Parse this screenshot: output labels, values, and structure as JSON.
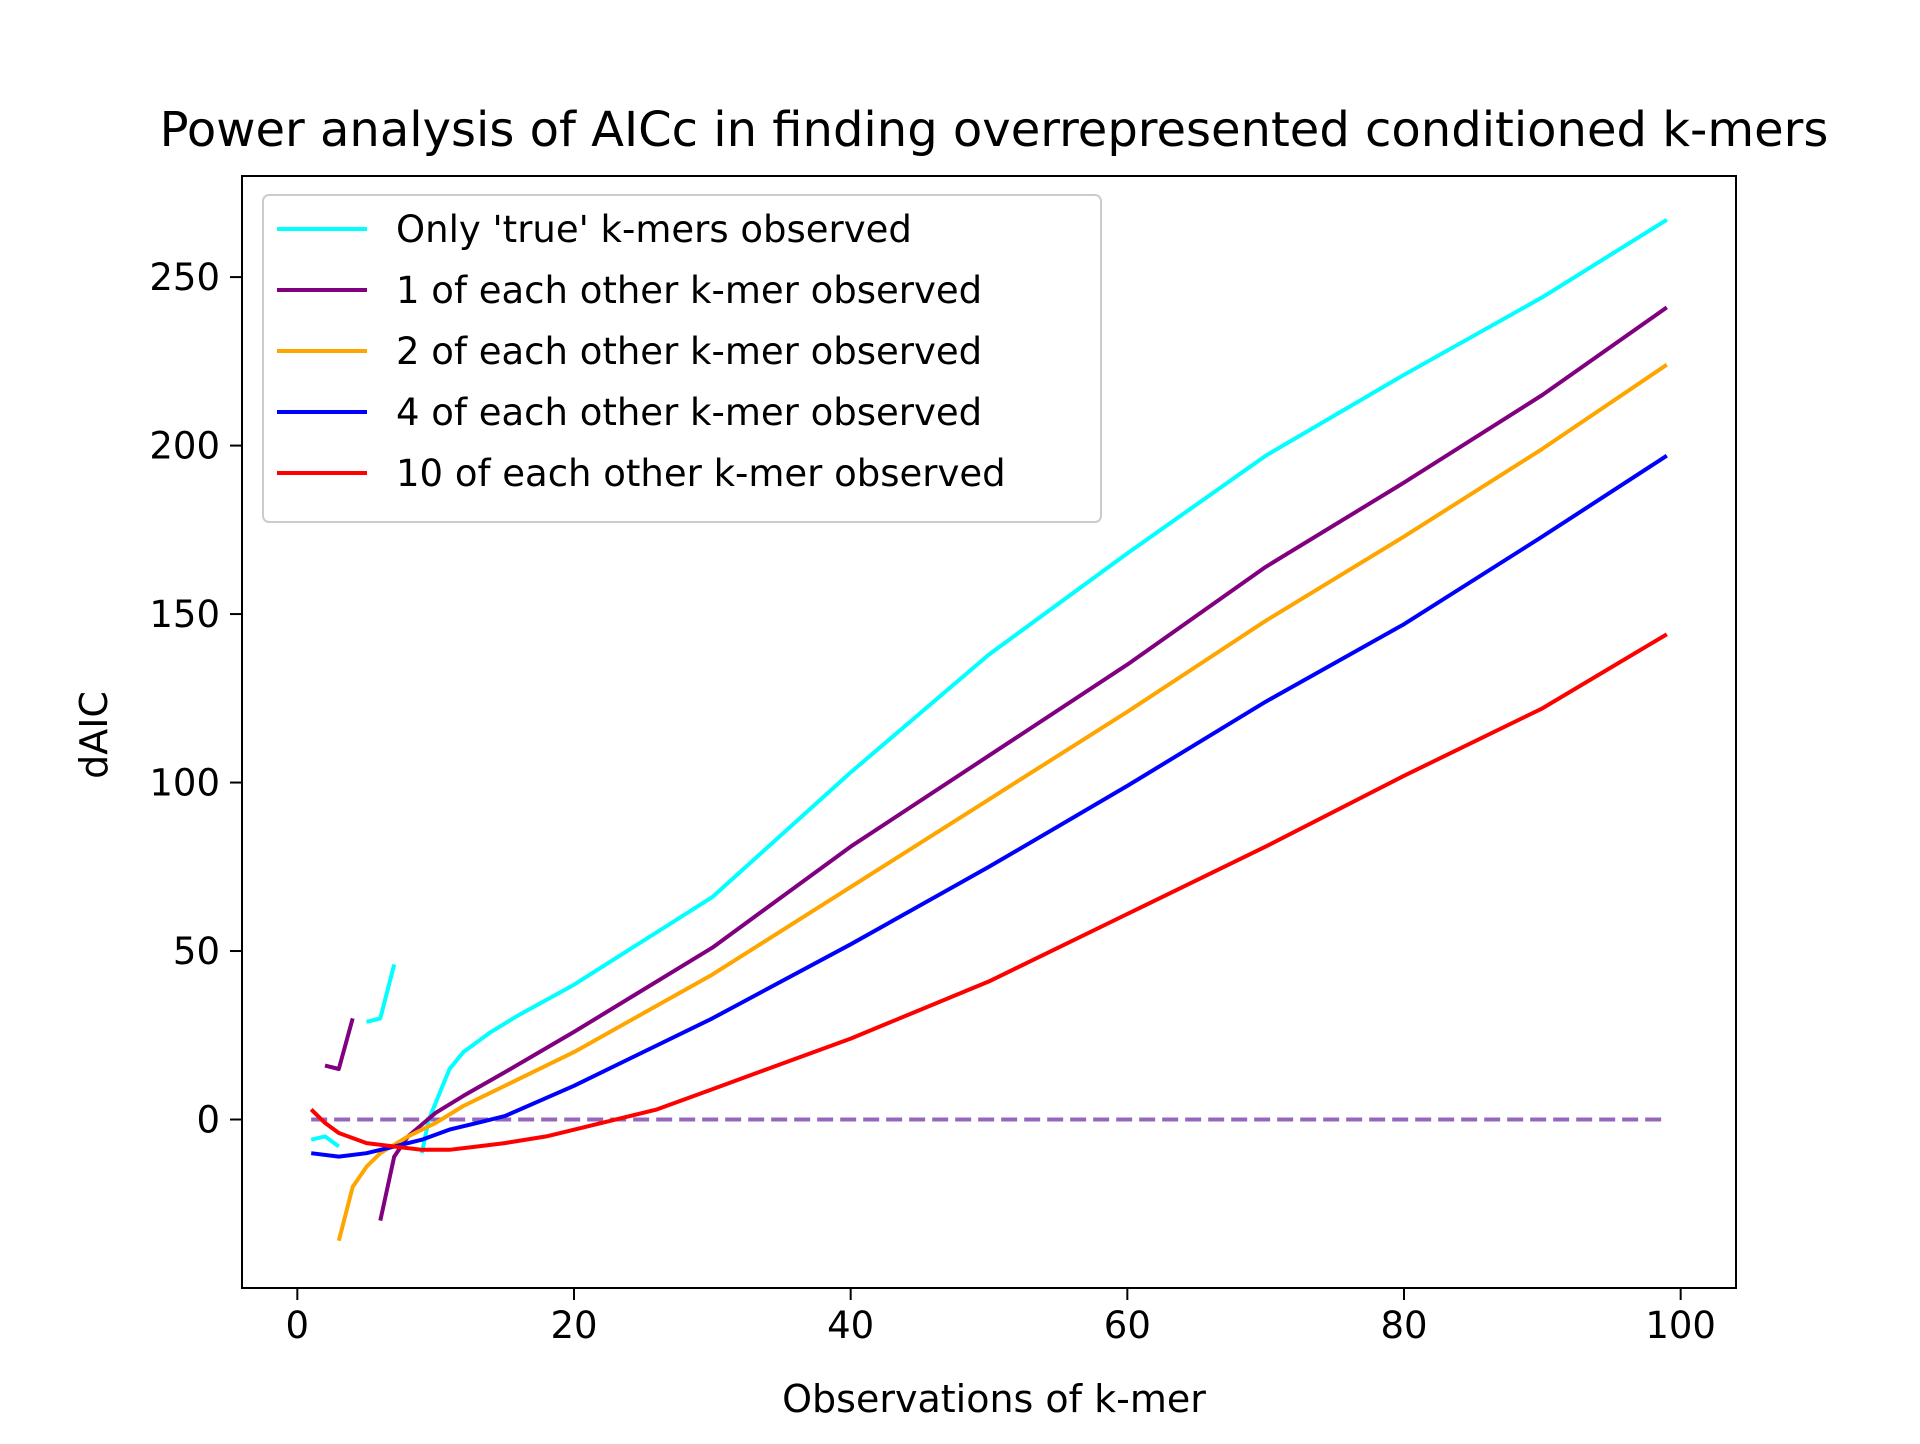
{
  "chart_data": {
    "type": "line",
    "title": "Power analysis of AICc in finding overrepresented conditioned k-mers",
    "xlabel": "Observations of k-mer",
    "ylabel": "dAIC",
    "xlim": [
      -4,
      104
    ],
    "ylim": [
      -50,
      280
    ],
    "xticks": [
      0,
      20,
      40,
      60,
      80,
      100
    ],
    "xtick_labels": [
      "0",
      "20",
      "40",
      "60",
      "80",
      "100"
    ],
    "yticks": [
      0,
      50,
      100,
      150,
      200,
      250
    ],
    "ytick_labels": [
      "0",
      "50",
      "100",
      "150",
      "200",
      "250"
    ],
    "grid": false,
    "legend_placement": "upper-left",
    "series": [
      {
        "name": "Only 'true' k-mers observed",
        "color": "#00ffff",
        "segments": [
          [
            [
              1,
              -6
            ],
            [
              2,
              -5
            ],
            [
              3,
              -8
            ]
          ],
          [
            [
              5,
              29
            ],
            [
              6,
              30
            ],
            [
              7,
              46
            ]
          ],
          [
            [
              9,
              -10
            ],
            [
              9.5,
              0
            ],
            [
              10,
              5
            ],
            [
              11,
              15
            ],
            [
              12,
              20
            ],
            [
              14,
              26
            ],
            [
              16,
              31
            ],
            [
              20,
              40
            ],
            [
              30,
              66
            ],
            [
              40,
              103
            ],
            [
              50,
              138
            ],
            [
              60,
              168
            ],
            [
              70,
              197
            ],
            [
              80,
              221
            ],
            [
              90,
              244
            ],
            [
              99,
              267
            ]
          ]
        ]
      },
      {
        "name": "1 of each other k-mer observed",
        "color": "#800080",
        "segments": [
          [
            [
              2,
              16
            ],
            [
              3,
              15
            ],
            [
              4,
              30
            ]
          ],
          [
            [
              6,
              -30
            ],
            [
              7,
              -11
            ],
            [
              8,
              -5
            ],
            [
              10,
              2
            ],
            [
              12,
              7
            ],
            [
              15,
              14
            ],
            [
              20,
              26
            ],
            [
              30,
              51
            ],
            [
              40,
              81
            ],
            [
              50,
              108
            ],
            [
              60,
              135
            ],
            [
              70,
              164
            ],
            [
              80,
              189
            ],
            [
              90,
              215
            ],
            [
              99,
              241
            ]
          ]
        ]
      },
      {
        "name": "2 of each other k-mer observed",
        "color": "#ffa500",
        "segments": [
          [
            [
              3,
              -36
            ],
            [
              4,
              -20
            ],
            [
              5,
              -14
            ],
            [
              6,
              -10
            ],
            [
              8,
              -5
            ],
            [
              10,
              -1
            ],
            [
              12,
              4
            ],
            [
              15,
              10
            ],
            [
              20,
              20
            ],
            [
              30,
              43
            ],
            [
              40,
              69
            ],
            [
              50,
              95
            ],
            [
              60,
              121
            ],
            [
              70,
              148
            ],
            [
              80,
              173
            ],
            [
              90,
              199
            ],
            [
              99,
              224
            ]
          ]
        ]
      },
      {
        "name": "4 of each other k-mer observed",
        "color": "#0000ff",
        "segments": [
          [
            [
              1,
              -10
            ],
            [
              3,
              -11
            ],
            [
              5,
              -10
            ],
            [
              7,
              -8
            ],
            [
              9,
              -6
            ],
            [
              11,
              -3
            ],
            [
              13,
              -1
            ],
            [
              15,
              1
            ],
            [
              20,
              10
            ],
            [
              30,
              30
            ],
            [
              40,
              52
            ],
            [
              50,
              75
            ],
            [
              60,
              99
            ],
            [
              70,
              124
            ],
            [
              80,
              147
            ],
            [
              90,
              173
            ],
            [
              99,
              197
            ]
          ]
        ]
      },
      {
        "name": "10 of each other k-mer observed",
        "color": "#ff0000",
        "segments": [
          [
            [
              1,
              3
            ],
            [
              2,
              -1
            ],
            [
              3,
              -4
            ],
            [
              5,
              -7
            ],
            [
              7,
              -8
            ],
            [
              9,
              -9
            ],
            [
              11,
              -9
            ],
            [
              13,
              -8
            ],
            [
              15,
              -7
            ],
            [
              18,
              -5
            ],
            [
              22,
              -1
            ],
            [
              26,
              3
            ],
            [
              30,
              9
            ],
            [
              40,
              24
            ],
            [
              50,
              41
            ],
            [
              60,
              61
            ],
            [
              70,
              81
            ],
            [
              80,
              102
            ],
            [
              90,
              122
            ],
            [
              99,
              144
            ]
          ]
        ]
      }
    ],
    "reference_line": {
      "y": 0,
      "x_range": [
        1,
        99
      ],
      "style": "dashed",
      "color": "#9467bd"
    }
  }
}
